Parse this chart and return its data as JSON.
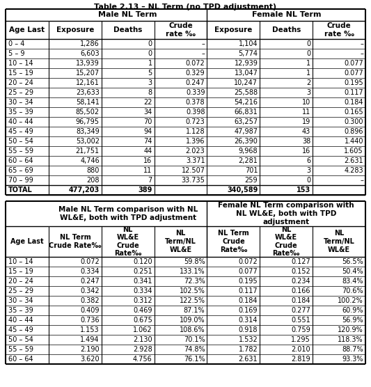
{
  "title": "Table 2.13 – NL Term (no TPD adjustment)",
  "table1": {
    "rows": [
      [
        "0 – 4",
        "1,286",
        "0",
        "–",
        "1,104",
        "0",
        "–"
      ],
      [
        "5 – 9",
        "6,603",
        "0",
        "–",
        "5,774",
        "0",
        "–"
      ],
      [
        "10 – 14",
        "13,939",
        "1",
        "0.072",
        "12,939",
        "1",
        "0.077"
      ],
      [
        "15 – 19",
        "15,207",
        "5",
        "0.329",
        "13,047",
        "1",
        "0.077"
      ],
      [
        "20 – 24",
        "12,161",
        "3",
        "0.247",
        "10,247",
        "2",
        "0.195"
      ],
      [
        "25 – 29",
        "23,633",
        "8",
        "0.339",
        "25,588",
        "3",
        "0.117"
      ],
      [
        "30 – 34",
        "58,141",
        "22",
        "0.378",
        "54,216",
        "10",
        "0.184"
      ],
      [
        "35 – 39",
        "85,502",
        "34",
        "0.398",
        "66,831",
        "11",
        "0.165"
      ],
      [
        "40 – 44",
        "96,795",
        "70",
        "0.723",
        "63,257",
        "19",
        "0.300"
      ],
      [
        "45 – 49",
        "83,349",
        "94",
        "1.128",
        "47,987",
        "43",
        "0.896"
      ],
      [
        "50 – 54",
        "53,002",
        "74",
        "1.396",
        "26,390",
        "38",
        "1.440"
      ],
      [
        "55 – 59",
        "21,751",
        "44",
        "2.023",
        "9,968",
        "16",
        "1.605"
      ],
      [
        "60 – 64",
        "4,746",
        "16",
        "3.371",
        "2,281",
        "6",
        "2.631"
      ],
      [
        "65 – 69",
        "880",
        "11",
        "12.507",
        "701",
        "3",
        "4.283"
      ],
      [
        "70 – 99",
        "208",
        "7",
        "33.735",
        "259",
        "0",
        "–"
      ],
      [
        "TOTAL",
        "477,203",
        "389",
        "",
        "340,589",
        "153",
        ""
      ]
    ]
  },
  "table2": {
    "rows": [
      [
        "10 – 14",
        "0.072",
        "0.120",
        "59.8%",
        "0.072",
        "0.127",
        "56.5%"
      ],
      [
        "15 – 19",
        "0.334",
        "0.251",
        "133.1%",
        "0.077",
        "0.152",
        "50.4%"
      ],
      [
        "20 – 24",
        "0.247",
        "0.341",
        "72.3%",
        "0.195",
        "0.234",
        "83.4%"
      ],
      [
        "25 – 29",
        "0.342",
        "0.334",
        "102.5%",
        "0.117",
        "0.166",
        "70.6%"
      ],
      [
        "30 – 34",
        "0.382",
        "0.312",
        "122.5%",
        "0.184",
        "0.184",
        "100.2%"
      ],
      [
        "35 – 39",
        "0.409",
        "0.469",
        "87.1%",
        "0.169",
        "0.277",
        "60.9%"
      ],
      [
        "40 – 44",
        "0.736",
        "0.675",
        "109.0%",
        "0.314",
        "0.551",
        "56.9%"
      ],
      [
        "45 – 49",
        "1.153",
        "1.062",
        "108.6%",
        "0.918",
        "0.759",
        "120.9%"
      ],
      [
        "50 – 54",
        "1.494",
        "2.130",
        "70.1%",
        "1.532",
        "1.295",
        "118.3%"
      ],
      [
        "55 – 59",
        "2.190",
        "2.928",
        "74.8%",
        "1.782",
        "2.010",
        "88.7%"
      ],
      [
        "60 – 64",
        "3.620",
        "4.756",
        "76.1%",
        "2.631",
        "2.819",
        "93.3%"
      ]
    ]
  },
  "per_mille": "‰"
}
